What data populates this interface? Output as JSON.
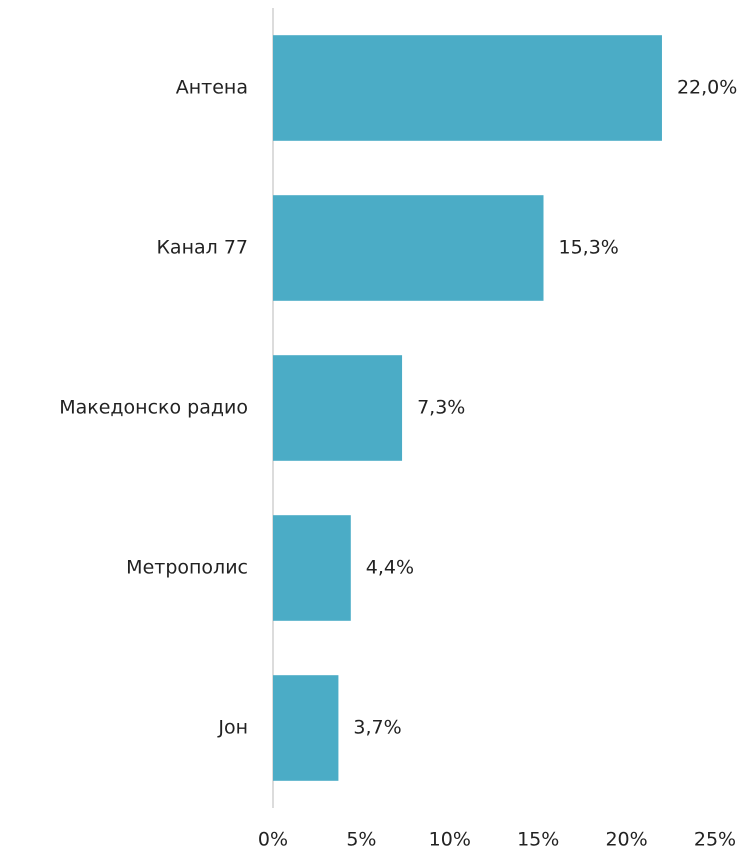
{
  "chart_data": {
    "type": "bar",
    "orientation": "horizontal",
    "categories": [
      "Антена",
      "Канал 77",
      "Македонско радио",
      "Метрополис",
      "Јон"
    ],
    "values": [
      22.0,
      15.3,
      7.3,
      4.4,
      3.7
    ],
    "value_labels": [
      "22,0%",
      "15,3%",
      "7,3%",
      "4,4%",
      "3,7%"
    ],
    "color": "#4bacc6",
    "xlim": [
      0,
      25
    ],
    "xticks": [
      {
        "value": 0,
        "label": "0%"
      },
      {
        "value": 5,
        "label": "5%"
      },
      {
        "value": 10,
        "label": "10%"
      },
      {
        "value": 15,
        "label": "15%"
      },
      {
        "value": 20,
        "label": "20%"
      },
      {
        "value": 25,
        "label": "25%"
      }
    ],
    "grid": false
  }
}
